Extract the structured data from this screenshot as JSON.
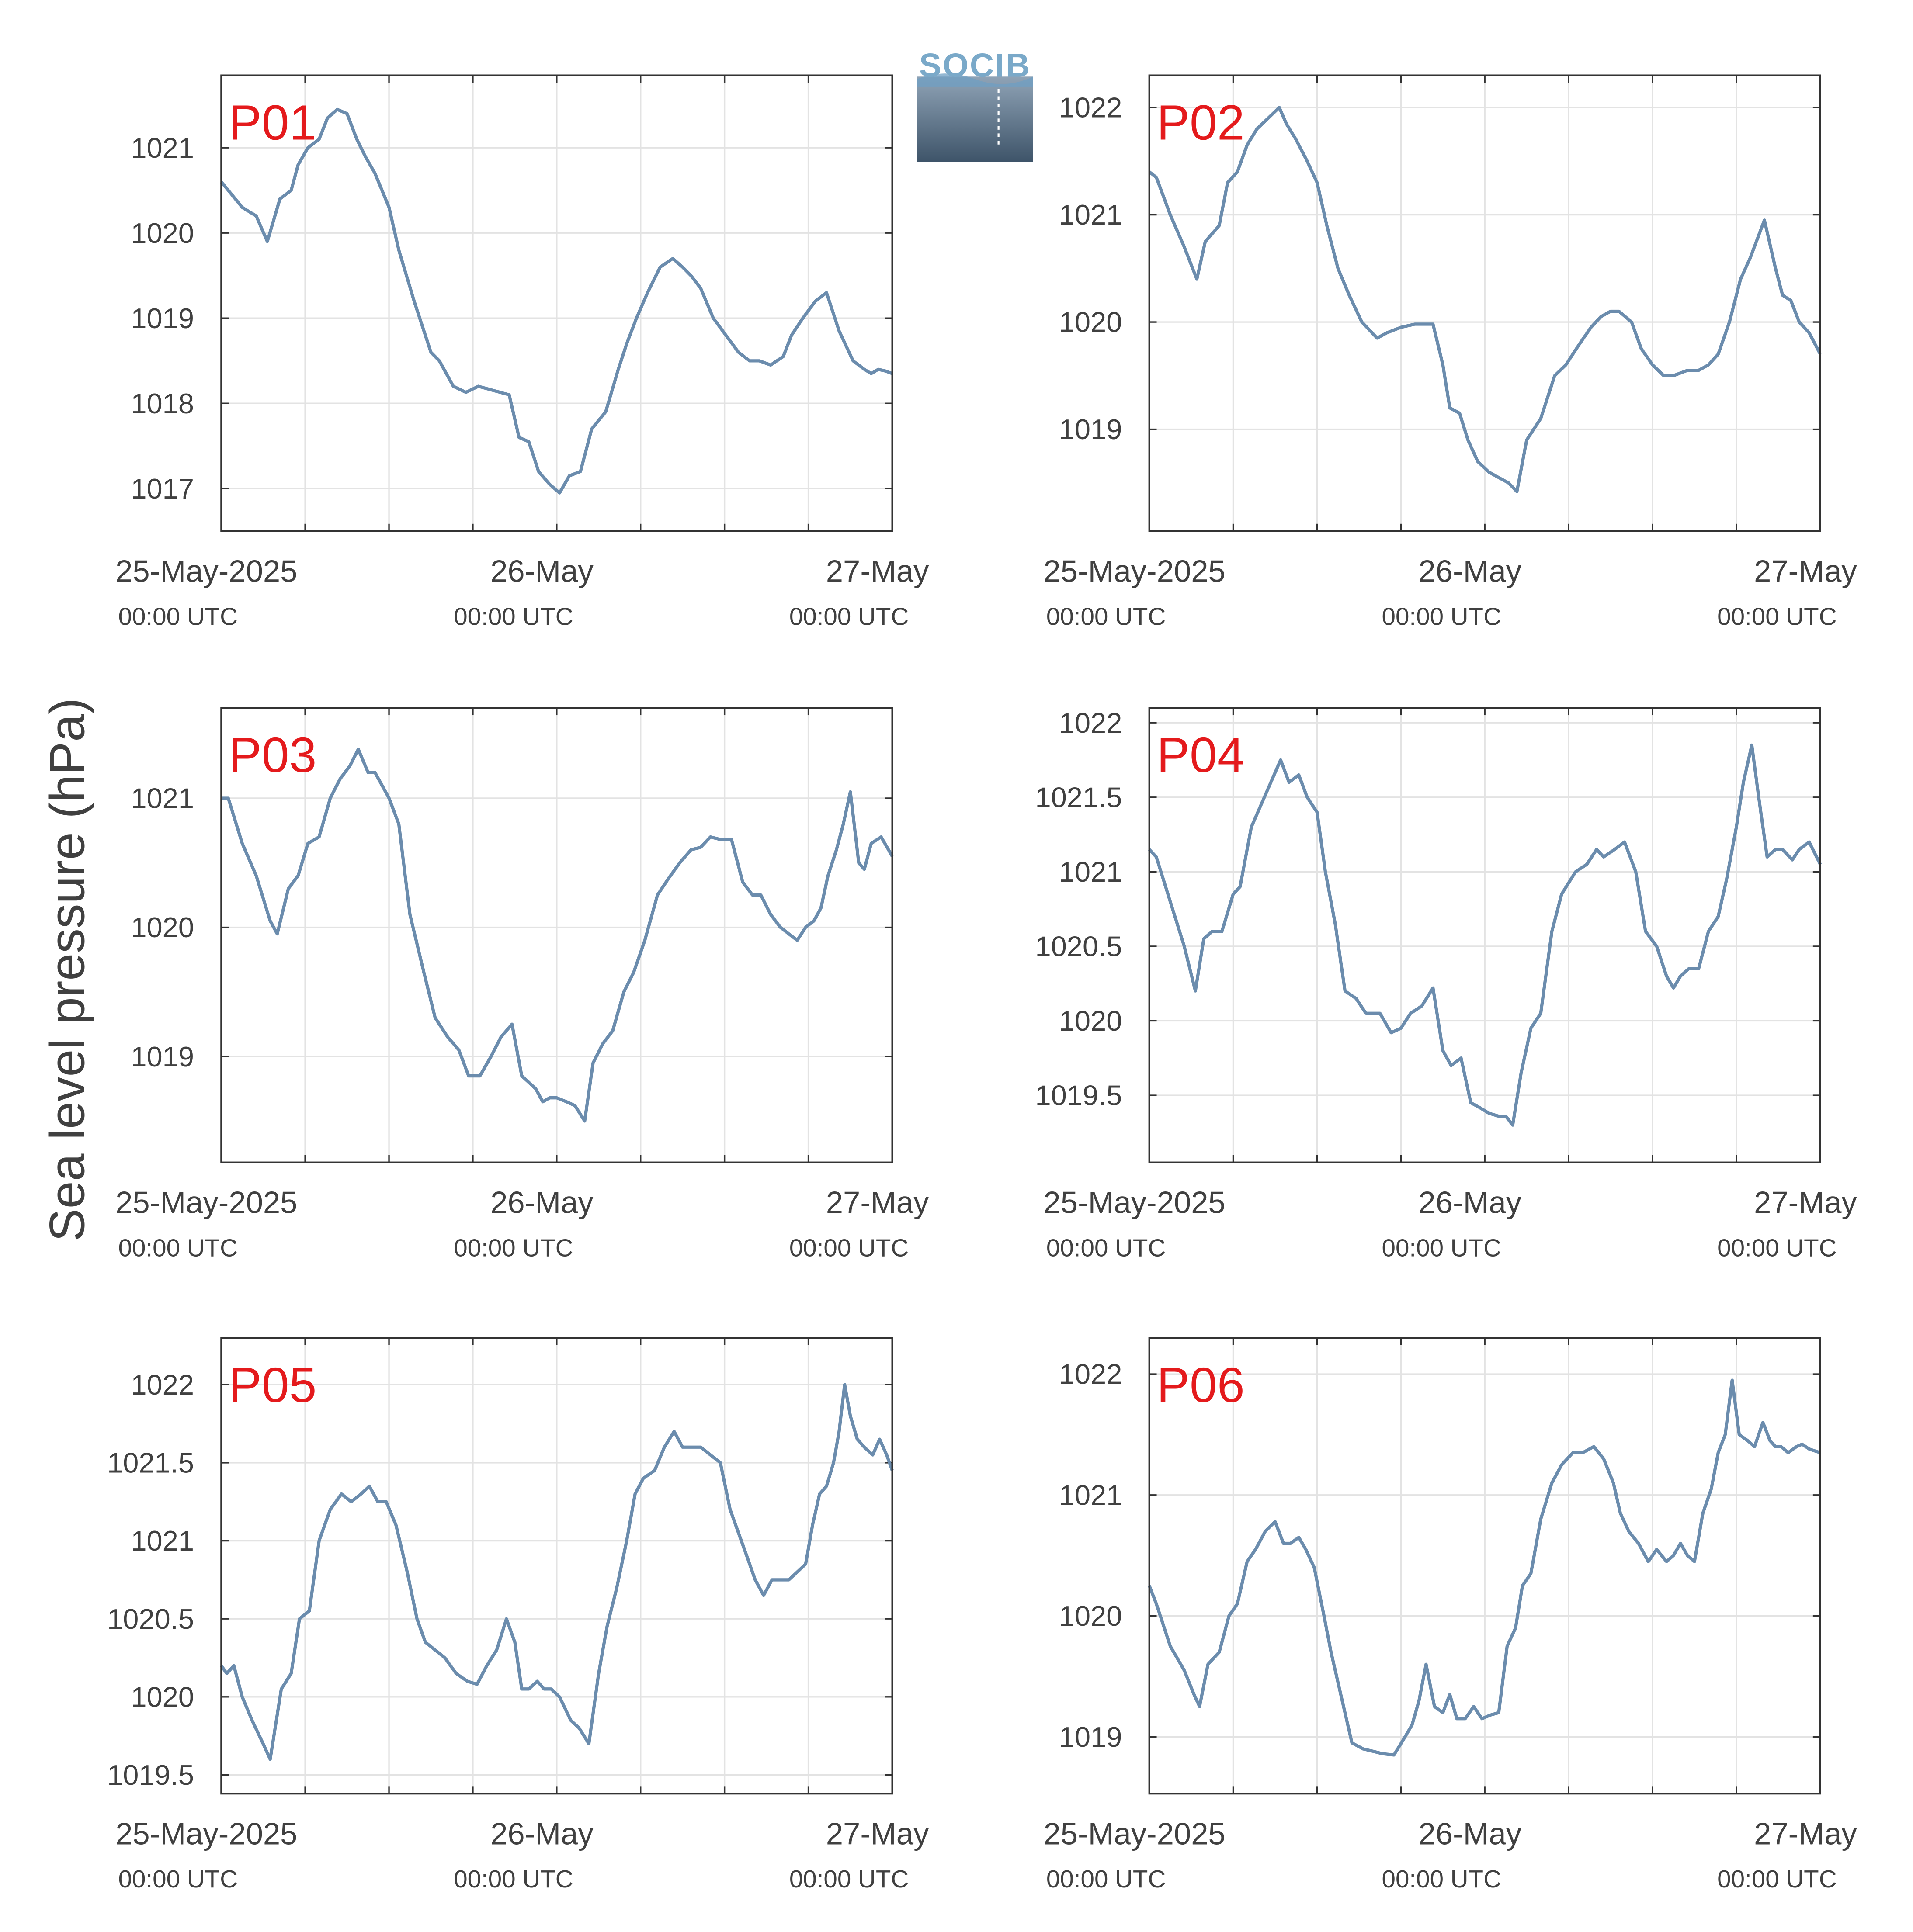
{
  "logo": {
    "text": "SOCIB",
    "top_color": "#7aa9c9",
    "bottom_color": "#3e5469"
  },
  "ylabel": "Sea level pressure (hPa)",
  "line_color": "#6b8cad",
  "panel_label_color": "#e41a1c",
  "x_tick_labels": [
    {
      "date": "25-May-2025",
      "time": "00:00 UTC"
    },
    {
      "date": "26-May",
      "time": "00:00 UTC"
    },
    {
      "date": "27-May",
      "time": "00:00 UTC"
    }
  ],
  "chart_data": [
    {
      "type": "line",
      "name": "P01",
      "xlim": [
        0,
        48
      ],
      "ylim": [
        1016.5,
        1021.85
      ],
      "yticks": [
        1017,
        1018,
        1019,
        1020,
        1021
      ],
      "ytick_labels": [
        "1017",
        "1018",
        "1019",
        "1020",
        "1021"
      ],
      "x": [
        0,
        0.5,
        1.5,
        2.5,
        3.3,
        4.2,
        5.0,
        5.5,
        6.2,
        7.0,
        7.6,
        8.3,
        9.0,
        9.7,
        10.3,
        11.0,
        12.0,
        12.7,
        13.8,
        15.0,
        15.6,
        16.6,
        17.5,
        18.4,
        19.5,
        20.6,
        21.3,
        22.0,
        22.7,
        23.5,
        24.2,
        24.9,
        25.7,
        26.5,
        27.5,
        28.4,
        29.0,
        29.7,
        30.5,
        31.4,
        32.3,
        33.0,
        33.6,
        34.3,
        35.2,
        36.1,
        37.0,
        37.8,
        38.5,
        39.3,
        40.2,
        40.8,
        41.6,
        42.5,
        43.3,
        44.2,
        45.2,
        46.0,
        46.5,
        47.0,
        47.5,
        48.0
      ],
      "y": [
        1020.6,
        1020.5,
        1020.3,
        1020.2,
        1019.9,
        1020.4,
        1020.5,
        1020.8,
        1021.0,
        1021.1,
        1021.35,
        1021.45,
        1021.4,
        1021.1,
        1020.9,
        1020.7,
        1020.3,
        1019.8,
        1019.2,
        1018.6,
        1018.5,
        1018.2,
        1018.13,
        1018.2,
        1018.15,
        1018.1,
        1017.6,
        1017.55,
        1017.2,
        1017.05,
        1016.95,
        1017.15,
        1017.2,
        1017.7,
        1017.9,
        1018.4,
        1018.7,
        1019.0,
        1019.3,
        1019.6,
        1019.7,
        1019.6,
        1019.5,
        1019.35,
        1019.0,
        1018.8,
        1018.6,
        1018.5,
        1018.5,
        1018.45,
        1018.55,
        1018.8,
        1019.0,
        1019.2,
        1019.3,
        1018.85,
        1018.5,
        1018.4,
        1018.35,
        1018.4,
        1018.38,
        1018.35
      ]
    },
    {
      "type": "line",
      "name": "P02",
      "xlim": [
        0,
        48
      ],
      "ylim": [
        1018.05,
        1022.3
      ],
      "yticks": [
        1019,
        1020,
        1021,
        1022
      ],
      "ytick_labels": [
        "1019",
        "1020",
        "1021",
        "1022"
      ],
      "x": [
        0,
        0.5,
        1.5,
        2.5,
        3.4,
        4.0,
        5.0,
        5.6,
        6.3,
        7.0,
        7.7,
        8.5,
        9.3,
        9.8,
        10.5,
        11.3,
        12.0,
        12.7,
        13.5,
        14.3,
        15.2,
        16.3,
        17.0,
        18.0,
        19.0,
        20.3,
        21.0,
        21.5,
        22.2,
        22.8,
        23.5,
        24.3,
        25.0,
        25.7,
        26.3,
        27.0,
        28.0,
        29.0,
        29.8,
        30.8,
        31.6,
        32.3,
        33.0,
        33.6,
        34.5,
        35.2,
        36.0,
        36.8,
        37.5,
        38.5,
        39.3,
        40.0,
        40.7,
        41.5,
        42.3,
        43.0,
        44.0,
        44.8,
        45.3,
        45.9,
        46.5,
        47.2,
        48.0
      ],
      "y": [
        1021.4,
        1021.35,
        1021.0,
        1020.7,
        1020.4,
        1020.75,
        1020.9,
        1021.3,
        1021.4,
        1021.65,
        1021.8,
        1021.9,
        1022.0,
        1021.85,
        1021.7,
        1021.5,
        1021.3,
        1020.9,
        1020.5,
        1020.25,
        1020.0,
        1019.85,
        1019.9,
        1019.95,
        1019.98,
        1019.98,
        1019.6,
        1019.2,
        1019.15,
        1018.9,
        1018.7,
        1018.6,
        1018.55,
        1018.5,
        1018.42,
        1018.9,
        1019.1,
        1019.5,
        1019.6,
        1019.8,
        1019.95,
        1020.05,
        1020.1,
        1020.1,
        1020.0,
        1019.75,
        1019.6,
        1019.5,
        1019.5,
        1019.55,
        1019.55,
        1019.6,
        1019.7,
        1020.0,
        1020.4,
        1020.6,
        1020.95,
        1020.5,
        1020.25,
        1020.2,
        1020.0,
        1019.9,
        1019.7
      ]
    },
    {
      "type": "line",
      "name": "P03",
      "xlim": [
        0,
        48
      ],
      "ylim": [
        1018.18,
        1021.7
      ],
      "yticks": [
        1019,
        1020,
        1021
      ],
      "ytick_labels": [
        "1019",
        "1020",
        "1021"
      ],
      "x": [
        0,
        0.5,
        1.5,
        2.5,
        3.5,
        4.0,
        4.8,
        5.5,
        6.2,
        7.0,
        7.8,
        8.5,
        9.2,
        9.8,
        10.5,
        11.0,
        12.0,
        12.7,
        13.5,
        14.5,
        15.3,
        16.2,
        17.0,
        17.7,
        18.5,
        19.3,
        20.0,
        20.8,
        21.5,
        22.0,
        22.5,
        23.0,
        23.5,
        24.0,
        24.7,
        25.3,
        26.0,
        26.6,
        27.3,
        28.0,
        28.8,
        29.5,
        30.3,
        31.2,
        32.0,
        32.8,
        33.6,
        34.3,
        35.0,
        35.7,
        36.5,
        37.3,
        38.0,
        38.6,
        39.3,
        40.0,
        40.6,
        41.2,
        41.8,
        42.4,
        42.9,
        43.4,
        44.0,
        44.5,
        45.0,
        45.6,
        46.0,
        46.5,
        47.2,
        48.0
      ],
      "y": [
        1021.0,
        1021.0,
        1020.65,
        1020.4,
        1020.05,
        1019.95,
        1020.3,
        1020.4,
        1020.65,
        1020.7,
        1021.0,
        1021.15,
        1021.25,
        1021.38,
        1021.2,
        1021.2,
        1021.0,
        1020.8,
        1020.1,
        1019.65,
        1019.3,
        1019.15,
        1019.05,
        1018.85,
        1018.85,
        1019.0,
        1019.15,
        1019.25,
        1018.85,
        1018.8,
        1018.75,
        1018.65,
        1018.68,
        1018.68,
        1018.65,
        1018.62,
        1018.5,
        1018.95,
        1019.1,
        1019.2,
        1019.5,
        1019.65,
        1019.9,
        1020.25,
        1020.38,
        1020.5,
        1020.6,
        1020.62,
        1020.7,
        1020.68,
        1020.68,
        1020.35,
        1020.25,
        1020.25,
        1020.1,
        1020.0,
        1019.95,
        1019.9,
        1020.0,
        1020.05,
        1020.15,
        1020.4,
        1020.6,
        1020.8,
        1021.05,
        1020.5,
        1020.45,
        1020.65,
        1020.7,
        1020.55
      ]
    },
    {
      "type": "line",
      "name": "P04",
      "xlim": [
        0,
        48
      ],
      "ylim": [
        1019.05,
        1022.1
      ],
      "yticks": [
        1019.5,
        1020,
        1020.5,
        1021,
        1021.5,
        1022
      ],
      "ytick_labels": [
        "1019.5",
        "1020",
        "1020.5",
        "1021",
        "1021.5",
        "1022"
      ],
      "x": [
        0,
        0.5,
        1.5,
        2.5,
        3.3,
        3.9,
        4.5,
        5.2,
        6.0,
        6.5,
        7.3,
        8.0,
        8.7,
        9.4,
        10.0,
        10.7,
        11.3,
        12.0,
        12.6,
        13.3,
        14.0,
        14.8,
        15.5,
        16.5,
        17.3,
        18.0,
        18.7,
        19.5,
        20.3,
        21.0,
        21.6,
        22.3,
        23.0,
        23.6,
        24.3,
        25.0,
        25.5,
        26.0,
        26.6,
        27.3,
        28.0,
        28.8,
        29.5,
        30.5,
        31.3,
        32.0,
        32.5,
        33.3,
        34.0,
        34.8,
        35.5,
        36.3,
        37.0,
        37.5,
        38.0,
        38.6,
        39.3,
        40.0,
        40.7,
        41.3,
        42.0,
        42.5,
        43.1,
        43.6,
        44.2,
        44.8,
        45.3,
        46.0,
        46.5,
        47.2,
        48.0
      ],
      "y": [
        1021.15,
        1021.1,
        1020.8,
        1020.5,
        1020.2,
        1020.55,
        1020.6,
        1020.6,
        1020.85,
        1020.9,
        1021.3,
        1021.45,
        1021.6,
        1021.75,
        1021.6,
        1021.65,
        1021.5,
        1021.4,
        1021.0,
        1020.65,
        1020.2,
        1020.15,
        1020.05,
        1020.05,
        1019.92,
        1019.95,
        1020.05,
        1020.1,
        1020.22,
        1019.8,
        1019.7,
        1019.75,
        1019.45,
        1019.42,
        1019.38,
        1019.36,
        1019.36,
        1019.3,
        1019.65,
        1019.95,
        1020.05,
        1020.6,
        1020.85,
        1021.0,
        1021.05,
        1021.15,
        1021.1,
        1021.15,
        1021.2,
        1021.0,
        1020.6,
        1020.5,
        1020.3,
        1020.22,
        1020.3,
        1020.35,
        1020.35,
        1020.6,
        1020.7,
        1020.95,
        1021.3,
        1021.6,
        1021.85,
        1021.5,
        1021.1,
        1021.15,
        1021.15,
        1021.08,
        1021.15,
        1021.2,
        1021.05
      ]
    },
    {
      "type": "line",
      "name": "P05",
      "xlim": [
        0,
        48
      ],
      "ylim": [
        1019.38,
        1022.3
      ],
      "yticks": [
        1019.5,
        1020,
        1020.5,
        1021,
        1021.5,
        1022
      ],
      "ytick_labels": [
        "1019.5",
        "1020",
        "1020.5",
        "1021",
        "1021.5",
        "1022"
      ],
      "x": [
        0,
        0.4,
        0.9,
        1.5,
        2.2,
        3.0,
        3.5,
        4.3,
        5.0,
        5.6,
        6.3,
        7.0,
        7.8,
        8.6,
        9.3,
        10.0,
        10.6,
        11.2,
        11.8,
        12.5,
        13.3,
        14.0,
        14.6,
        15.3,
        16.0,
        16.8,
        17.6,
        18.3,
        19.0,
        19.7,
        20.4,
        21.0,
        21.5,
        22.0,
        22.6,
        23.1,
        23.6,
        24.2,
        25.0,
        25.6,
        26.3,
        27.0,
        27.6,
        28.3,
        29.0,
        29.6,
        30.2,
        31.0,
        31.7,
        32.4,
        33.0,
        33.6,
        34.3,
        35.0,
        35.7,
        36.4,
        37.0,
        37.6,
        38.2,
        38.8,
        39.4,
        40.0,
        40.6,
        41.2,
        41.8,
        42.3,
        42.8,
        43.3,
        43.8,
        44.2,
        44.6,
        45.0,
        45.5,
        46.0,
        46.6,
        47.1,
        47.6,
        48.0
      ],
      "y": [
        1020.2,
        1020.15,
        1020.2,
        1020.0,
        1019.85,
        1019.7,
        1019.6,
        1020.05,
        1020.15,
        1020.5,
        1020.55,
        1021.0,
        1021.2,
        1021.3,
        1021.25,
        1021.3,
        1021.35,
        1021.25,
        1021.25,
        1021.1,
        1020.8,
        1020.5,
        1020.35,
        1020.3,
        1020.25,
        1020.15,
        1020.1,
        1020.08,
        1020.2,
        1020.3,
        1020.5,
        1020.35,
        1020.05,
        1020.05,
        1020.1,
        1020.05,
        1020.05,
        1020.0,
        1019.85,
        1019.8,
        1019.7,
        1020.15,
        1020.45,
        1020.7,
        1021.0,
        1021.3,
        1021.4,
        1021.45,
        1021.6,
        1021.7,
        1021.6,
        1021.6,
        1021.6,
        1021.55,
        1021.5,
        1021.2,
        1021.05,
        1020.9,
        1020.75,
        1020.65,
        1020.75,
        1020.75,
        1020.75,
        1020.8,
        1020.85,
        1021.1,
        1021.3,
        1021.35,
        1021.5,
        1021.7,
        1022.0,
        1021.8,
        1021.65,
        1021.6,
        1021.55,
        1021.65,
        1021.55,
        1021.45
      ]
    },
    {
      "type": "line",
      "name": "P06",
      "xlim": [
        0,
        48
      ],
      "ylim": [
        1018.53,
        1022.3
      ],
      "yticks": [
        1019,
        1020,
        1021,
        1022
      ],
      "ytick_labels": [
        "1019",
        "1020",
        "1021",
        "1022"
      ],
      "x": [
        0,
        0.5,
        1.5,
        2.5,
        3.2,
        3.6,
        4.2,
        5.0,
        5.7,
        6.3,
        7.0,
        7.6,
        8.3,
        9.0,
        9.6,
        10.1,
        10.7,
        11.2,
        11.8,
        12.5,
        13.0,
        13.8,
        14.5,
        15.3,
        16.0,
        16.7,
        17.5,
        18.3,
        18.8,
        19.3,
        19.8,
        20.4,
        21.0,
        21.5,
        22.0,
        22.6,
        23.2,
        23.8,
        24.4,
        25.0,
        25.6,
        26.2,
        26.7,
        27.3,
        28.0,
        28.8,
        29.5,
        30.3,
        31.0,
        31.8,
        32.5,
        33.2,
        33.7,
        34.3,
        35.0,
        35.7,
        36.3,
        37.0,
        37.5,
        38.0,
        38.5,
        39.0,
        39.6,
        40.2,
        40.7,
        41.2,
        41.7,
        42.2,
        42.8,
        43.3,
        43.9,
        44.4,
        44.8,
        45.2,
        45.7,
        46.3,
        46.7,
        47.2,
        48.0
      ],
      "y": [
        1020.25,
        1020.1,
        1019.75,
        1019.55,
        1019.35,
        1019.25,
        1019.6,
        1019.7,
        1020.0,
        1020.1,
        1020.45,
        1020.55,
        1020.7,
        1020.78,
        1020.6,
        1020.6,
        1020.65,
        1020.55,
        1020.4,
        1020.0,
        1019.7,
        1019.3,
        1018.95,
        1018.9,
        1018.88,
        1018.86,
        1018.85,
        1019.0,
        1019.1,
        1019.3,
        1019.6,
        1019.25,
        1019.2,
        1019.35,
        1019.15,
        1019.15,
        1019.25,
        1019.15,
        1019.18,
        1019.2,
        1019.75,
        1019.9,
        1020.25,
        1020.35,
        1020.8,
        1021.1,
        1021.25,
        1021.35,
        1021.35,
        1021.4,
        1021.3,
        1021.1,
        1020.85,
        1020.7,
        1020.6,
        1020.45,
        1020.55,
        1020.45,
        1020.5,
        1020.6,
        1020.5,
        1020.45,
        1020.85,
        1021.05,
        1021.35,
        1021.5,
        1021.95,
        1021.5,
        1021.45,
        1021.4,
        1021.6,
        1021.45,
        1021.4,
        1021.4,
        1021.35,
        1021.4,
        1021.42,
        1021.38,
        1021.35
      ]
    }
  ]
}
